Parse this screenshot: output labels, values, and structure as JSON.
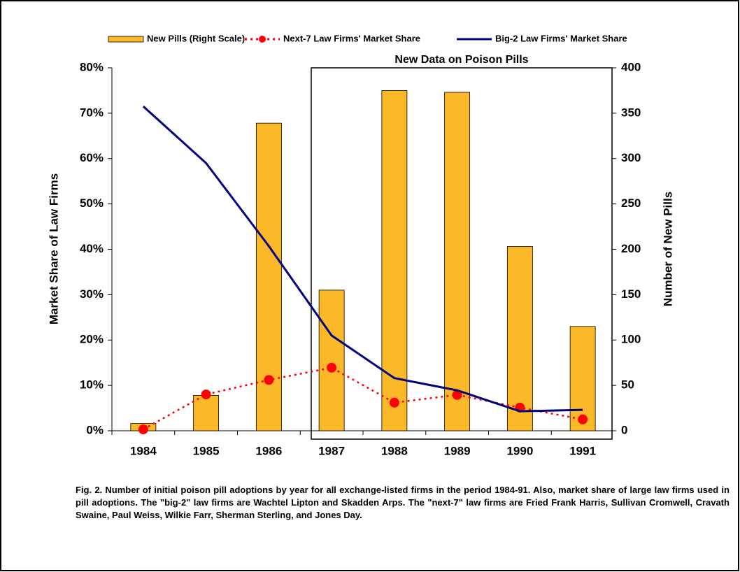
{
  "chart_data": {
    "type": "combo",
    "annotation": "New Data on Poison Pills",
    "ylabel": "Market Share of Law Firms",
    "y2label": "Number of New Pills",
    "categories": [
      "1984",
      "1985",
      "1986",
      "1987",
      "1988",
      "1989",
      "1990",
      "1991"
    ],
    "ylim": [
      0,
      80
    ],
    "yticks": [
      {
        "value": 0,
        "label": "0%"
      },
      {
        "value": 10,
        "label": "10%"
      },
      {
        "value": 20,
        "label": "20%"
      },
      {
        "value": 30,
        "label": "30%"
      },
      {
        "value": 40,
        "label": "40%"
      },
      {
        "value": 50,
        "label": "50%"
      },
      {
        "value": 60,
        "label": "60%"
      },
      {
        "value": 70,
        "label": "70%"
      },
      {
        "value": 80,
        "label": "80%"
      }
    ],
    "y2lim": [
      0,
      400
    ],
    "y2ticks": [
      0,
      50,
      100,
      150,
      200,
      250,
      300,
      350,
      400
    ],
    "series": [
      {
        "name": "New Pills (Right Scale)",
        "type": "bar",
        "axis": "y2",
        "color": "#fbb829",
        "values": [
          8,
          39,
          339,
          155,
          375,
          373,
          203,
          115
        ]
      },
      {
        "name": "Next-7 Law Firms' Market Share",
        "type": "dotted",
        "color": "#ff0000",
        "values": [
          0.3,
          8,
          11.2,
          13.9,
          6.2,
          7.9,
          5.1,
          2.5
        ]
      },
      {
        "name": "Big-2 Law Firms' Market Share",
        "type": "line",
        "color": "#000080",
        "values": [
          71.5,
          59,
          40.7,
          21,
          11.6,
          8.9,
          4.3,
          4.6
        ]
      }
    ]
  },
  "caption": "Fig. 2.  Number of initial poison pill adoptions by year  for all exchange-listed firms in the period 1984-91.  Also, market share of large law firms used in pill adoptions.  The \"big-2\" law firms are Wachtel Lipton and Skadden Arps.  The \"next-7\" law firms are Fried Frank Harris, Sullivan Cromwell, Cravath Swaine, Paul Weiss, Wilkie Farr, Sherman Sterling, and Jones Day."
}
